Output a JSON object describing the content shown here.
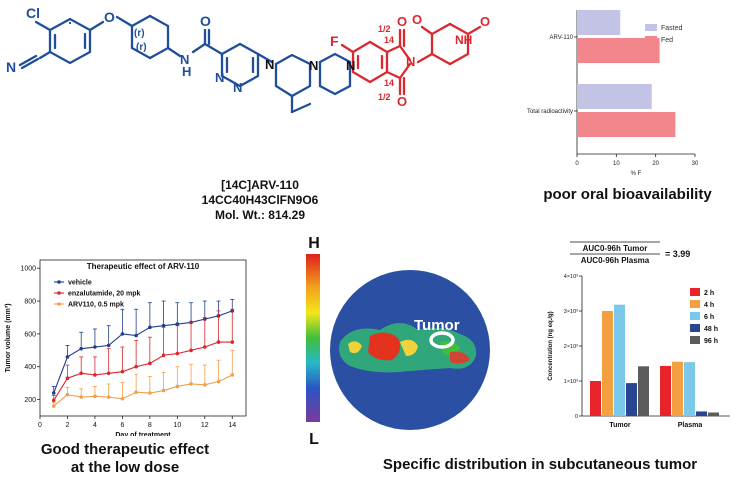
{
  "molecule": {
    "name": "[14C]ARV-110",
    "formula": "14CC40H43ClFN9O6",
    "mol_wt": "Mol. Wt.: 814.29",
    "atoms": {
      "cl": "Cl",
      "o": "O",
      "n": "N",
      "nh": "NH",
      "h": "H",
      "f": "F",
      "r1": "(r)",
      "r2": "(r)",
      "c14": "14",
      "frac": "1/2"
    },
    "colors": {
      "left": "#1f4e9a",
      "right": "#d9282f"
    }
  },
  "bioavailability": {
    "caption": "poor oral bioavailability",
    "chart_data": {
      "type": "bar",
      "orientation": "horizontal",
      "categories": [
        "ARV-110",
        "Total radioactivity"
      ],
      "series": [
        {
          "name": "Fasted",
          "values": [
            11,
            19
          ],
          "color": "#c3c3e6"
        },
        {
          "name": "Fed",
          "values": [
            21,
            25
          ],
          "color": "#f1868c"
        }
      ],
      "xlabel": "% F",
      "ylabel": "",
      "xlim": [
        0,
        30
      ],
      "xticks": [
        0,
        10,
        20,
        30
      ],
      "legend": "top-right",
      "title": ""
    }
  },
  "efficacy": {
    "caption_line1": "Good therapeutic effect",
    "caption_line2": "at the low dose",
    "chart_data": {
      "type": "line",
      "title": "Therapeutic effect of ARV-110",
      "xlabel": "Day of treatment",
      "ylabel": "Tumor volume (mm³)",
      "xlim": [
        0,
        15
      ],
      "ylim": [
        100,
        1050
      ],
      "xticks": [
        0,
        2,
        4,
        6,
        8,
        10,
        12,
        14
      ],
      "yticks": [
        200,
        400,
        600,
        800,
        1000
      ],
      "x": [
        1,
        2,
        3,
        4,
        5,
        6,
        7,
        8,
        9,
        10,
        11,
        12,
        13,
        14
      ],
      "series": [
        {
          "name": "vehicle",
          "color": "#1f3f8f",
          "values": [
            240,
            460,
            510,
            520,
            530,
            600,
            590,
            640,
            650,
            660,
            670,
            690,
            710,
            740
          ],
          "err": [
            40,
            70,
            100,
            110,
            120,
            150,
            160,
            150,
            150,
            130,
            120,
            110,
            90,
            70
          ]
        },
        {
          "name": "enzalutamide, 20 mpk",
          "color": "#d9282f",
          "values": [
            195,
            330,
            360,
            350,
            360,
            370,
            400,
            420,
            470,
            480,
            500,
            520,
            550,
            550
          ],
          "err": [
            30,
            80,
            100,
            110,
            150,
            150,
            160,
            160,
            170,
            170,
            170,
            180,
            190,
            200
          ]
        },
        {
          "name": "ARV110, 0.5 mpk",
          "color": "#f0a04b",
          "values": [
            160,
            230,
            215,
            220,
            215,
            205,
            245,
            240,
            255,
            280,
            295,
            290,
            310,
            350
          ],
          "err": [
            20,
            45,
            50,
            60,
            80,
            100,
            110,
            100,
            110,
            120,
            120,
            120,
            130,
            150
          ]
        }
      ]
    }
  },
  "distribution": {
    "caption": "Specific distribution in subcutaneous tumor",
    "scale_high": "H",
    "scale_low": "L",
    "tumor_label": "Tumor"
  },
  "concentration": {
    "auc_num": "AUC0-96h Tumor",
    "auc_den": "AUC0-96h Plasma",
    "auc_value": "= 3.99",
    "chart_data": {
      "type": "bar",
      "categories": [
        "Tumor",
        "Plasma"
      ],
      "ylabel": "Concentration (ng eq./g)",
      "ylim": [
        0,
        4000
      ],
      "ytick_values": [
        0,
        1000,
        2000,
        3000,
        4000
      ],
      "yticks": [
        "0",
        "1×10³",
        "2×10³",
        "3×10³",
        "4×10³"
      ],
      "legend": "top-right",
      "series": [
        {
          "name": "2 h",
          "color": "#e8232a",
          "values": [
            1000,
            1430
          ]
        },
        {
          "name": "4 h",
          "color": "#f5a040",
          "values": [
            3000,
            1550
          ]
        },
        {
          "name": "6 h",
          "color": "#7bc8ea",
          "values": [
            3180,
            1540
          ]
        },
        {
          "name": "48 h",
          "color": "#27468f",
          "values": [
            940,
            130
          ]
        },
        {
          "name": "96 h",
          "color": "#5c5c5c",
          "values": [
            1420,
            100
          ]
        }
      ]
    }
  }
}
